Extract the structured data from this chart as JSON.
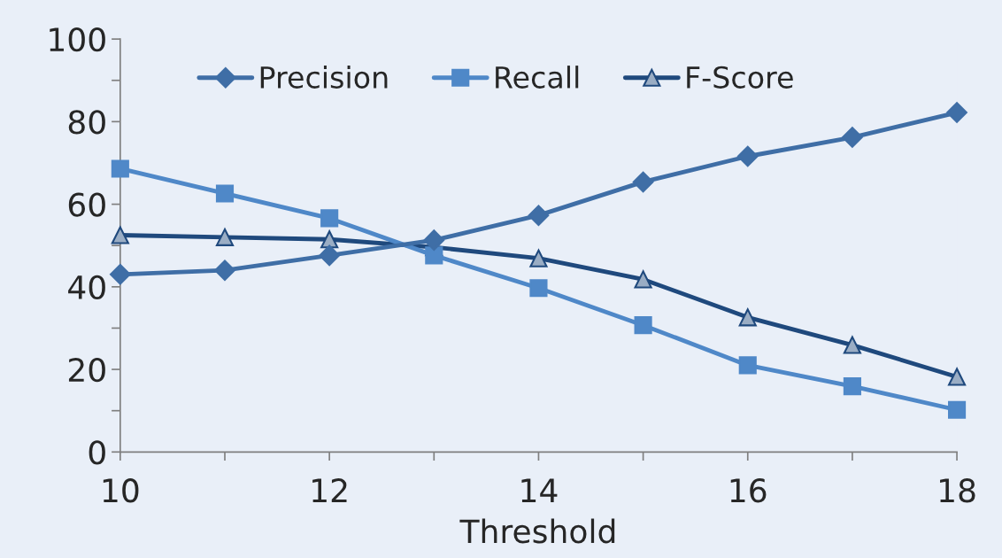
{
  "chart_data": {
    "type": "line",
    "xlabel": "Threshold",
    "x": [
      10,
      11,
      12,
      13,
      14,
      15,
      16,
      17,
      18
    ],
    "series": [
      {
        "name": "Precision",
        "color": "#3f6ea6",
        "marker": "diamond",
        "values": [
          43,
          44,
          47.6,
          51.3,
          57.3,
          65.4,
          71.6,
          76.2,
          82.2
        ]
      },
      {
        "name": "Recall",
        "color": "#4f88c8",
        "marker": "square",
        "values": [
          68.6,
          62.6,
          56.6,
          47.6,
          39.7,
          30.7,
          21,
          15.9,
          10.2
        ]
      },
      {
        "name": "F-Score",
        "color": "#1f497d",
        "marker": "triangle",
        "values": [
          52.5,
          52,
          51.5,
          49.6,
          46.9,
          41.8,
          32.6,
          25.9,
          18.2
        ]
      }
    ],
    "xlim": [
      10,
      18
    ],
    "ylim": [
      0,
      100
    ],
    "xticks": [
      10,
      {
        "value": 11,
        "label": null
      },
      12,
      {
        "value": 13,
        "label": null
      },
      14,
      {
        "value": 15,
        "label": null
      },
      16,
      {
        "value": 17,
        "label": null
      },
      18
    ],
    "yticks": [
      0,
      {
        "value": 10,
        "label": null
      },
      20,
      {
        "value": 30,
        "label": null
      },
      40,
      {
        "value": 50,
        "label": null
      },
      60,
      {
        "value": 70,
        "label": null
      },
      80,
      {
        "value": 90,
        "label": null
      },
      100
    ],
    "grid": false,
    "legend": "top",
    "line_style": "solid"
  }
}
